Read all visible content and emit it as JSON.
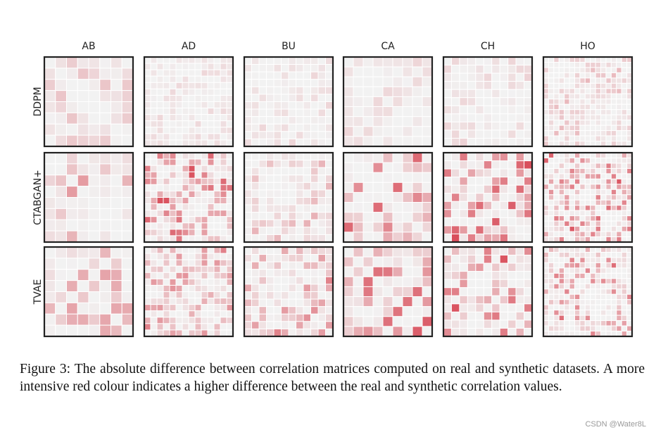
{
  "chart_data": {
    "type": "heatmap",
    "columns": [
      "AB",
      "AD",
      "BU",
      "CA",
      "CH",
      "HO"
    ],
    "rows": [
      "DDPM",
      "CTABGAN+",
      "TVAE"
    ],
    "color_scale": {
      "low": "#f2f2f2",
      "high": "#d42f3e"
    },
    "panels": {
      "AB": {
        "n": 8,
        "max": [
          0.35,
          0.45,
          0.55
        ]
      },
      "AD": {
        "n": 14,
        "max": [
          0.15,
          0.85,
          0.65
        ]
      },
      "BU": {
        "n": 12,
        "max": [
          0.15,
          0.4,
          0.6
        ]
      },
      "CA": {
        "n": 9,
        "max": [
          0.15,
          1.0,
          1.0
        ]
      },
      "CH": {
        "n": 11,
        "max": [
          0.2,
          1.0,
          0.85
        ]
      },
      "HO": {
        "n": 17,
        "max": [
          0.3,
          0.8,
          0.7
        ]
      }
    }
  },
  "caption": {
    "text": "Figure 3:  The absolute difference between correlation matrices computed on real and synthetic datasets.  A more intensive red colour indicates a higher difference between the real and synthetic correlation values."
  },
  "watermark": "CSDN @Water8L"
}
